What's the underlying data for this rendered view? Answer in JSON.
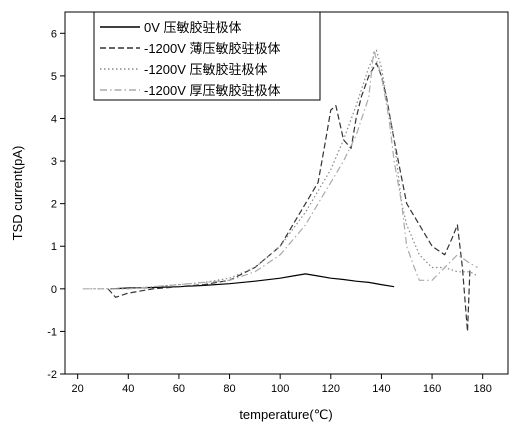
{
  "chart_data": {
    "type": "line",
    "title": "",
    "xlabel": "temperature(℃)",
    "ylabel": "TSD current(pA)",
    "xlim": [
      15,
      190
    ],
    "ylim": [
      -2,
      6.5
    ],
    "xticks": [
      20,
      40,
      60,
      80,
      100,
      120,
      140,
      160,
      180
    ],
    "yticks": [
      -2,
      -1,
      0,
      1,
      2,
      3,
      4,
      5,
      6
    ],
    "grid": false,
    "legend_position": "top-left",
    "series": [
      {
        "name": "0V 压敏胶驻极体",
        "color": "#000000",
        "dash": "solid",
        "x": [
          33,
          40,
          50,
          60,
          70,
          80,
          90,
          100,
          105,
          110,
          115,
          120,
          125,
          130,
          135,
          140,
          145
        ],
        "y": [
          0.0,
          0.02,
          0.03,
          0.05,
          0.08,
          0.12,
          0.18,
          0.25,
          0.3,
          0.35,
          0.3,
          0.25,
          0.22,
          0.18,
          0.15,
          0.1,
          0.05
        ]
      },
      {
        "name": "-1200V 薄压敏胶驻极体",
        "color": "#333333",
        "dash": "dashed",
        "x": [
          32,
          35,
          40,
          50,
          60,
          70,
          80,
          90,
          100,
          105,
          110,
          115,
          118,
          120,
          122,
          125,
          128,
          130,
          132,
          135,
          137,
          138,
          140,
          142,
          145,
          150,
          155,
          160,
          165,
          168,
          170,
          172,
          174,
          175
        ],
        "y": [
          0.0,
          -0.2,
          -0.1,
          0.0,
          0.05,
          0.1,
          0.2,
          0.5,
          1.0,
          1.5,
          2.0,
          2.5,
          3.5,
          4.2,
          4.3,
          3.5,
          3.3,
          4.0,
          4.5,
          5.0,
          5.2,
          5.3,
          5.0,
          4.5,
          3.5,
          2.0,
          1.5,
          1.0,
          0.8,
          1.2,
          1.5,
          0.5,
          -1.0,
          0.5
        ]
      },
      {
        "name": "-1200V 压敏胶驻极体",
        "color": "#888888",
        "dash": "dotted",
        "x": [
          25,
          30,
          40,
          50,
          60,
          70,
          80,
          90,
          100,
          110,
          115,
          120,
          125,
          130,
          135,
          138,
          140,
          142,
          145,
          148,
          150,
          155,
          160,
          165,
          170,
          175,
          178
        ],
        "y": [
          0.0,
          0.0,
          0.0,
          0.05,
          0.1,
          0.15,
          0.25,
          0.5,
          1.0,
          1.8,
          2.3,
          2.8,
          3.5,
          4.3,
          5.2,
          5.6,
          5.2,
          4.5,
          3.5,
          2.0,
          1.5,
          0.8,
          0.5,
          0.5,
          0.4,
          0.4,
          0.3
        ]
      },
      {
        "name": "-1200V 厚压敏胶驻极体",
        "color": "#aaaaaa",
        "dash": "dashdot",
        "x": [
          22,
          30,
          40,
          50,
          60,
          70,
          80,
          90,
          100,
          110,
          115,
          120,
          125,
          130,
          135,
          137,
          140,
          143,
          145,
          148,
          150,
          153,
          155,
          160,
          165,
          170,
          175,
          178
        ],
        "y": [
          0.0,
          0.0,
          0.0,
          0.05,
          0.1,
          0.15,
          0.2,
          0.4,
          0.8,
          1.5,
          2.0,
          2.5,
          3.0,
          3.6,
          4.5,
          5.6,
          5.0,
          4.0,
          3.0,
          2.0,
          1.0,
          0.5,
          0.2,
          0.2,
          0.5,
          0.8,
          0.6,
          0.5
        ]
      }
    ]
  }
}
